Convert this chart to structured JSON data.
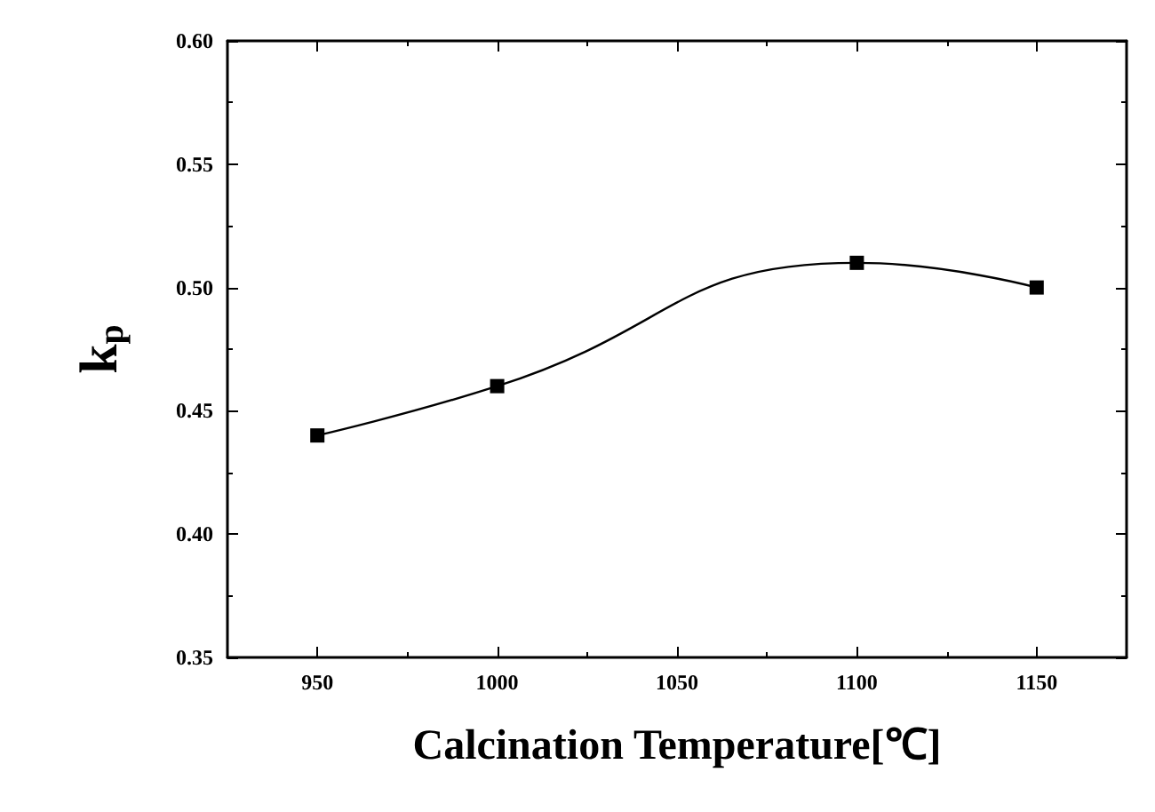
{
  "chart_data": {
    "type": "line",
    "xlabel": "Calcination Temperature[℃]",
    "ylabel": "k$_{p}$",
    "x": [
      950,
      1000,
      1100,
      1150
    ],
    "series": [
      {
        "color": "#000000",
        "values": [
          0.44,
          0.46,
          0.51,
          0.5
        ]
      }
    ],
    "xlim": [
      925,
      1175
    ],
    "xticks": [
      950,
      1000,
      1050,
      1100,
      1150
    ],
    "ylim": [
      0.35,
      0.6
    ],
    "yticks": [
      {
        "value": 0.35,
        "label": "0.35"
      },
      {
        "value": 0.4,
        "label": "0.40"
      },
      {
        "value": 0.45,
        "label": "0.45"
      },
      {
        "value": 0.5,
        "label": "0.50"
      },
      {
        "value": 0.55,
        "label": "0.55"
      },
      {
        "value": 0.6,
        "label": "0.60"
      }
    ],
    "marker": "square",
    "line_style": "solid"
  }
}
